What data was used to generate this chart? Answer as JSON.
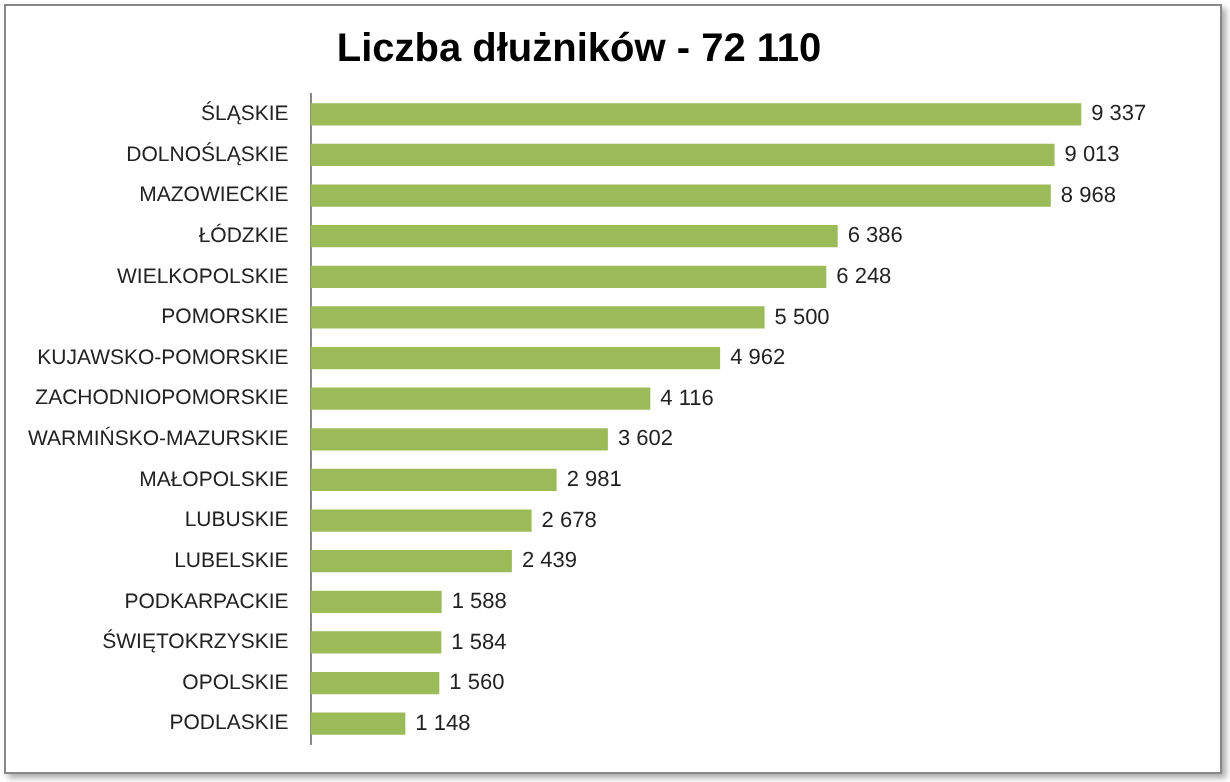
{
  "chart_data": {
    "type": "bar",
    "orientation": "horizontal",
    "title": "Liczba dłużników - 72 110",
    "categories": [
      "ŚLĄSKIE",
      "DOLNOŚLĄSKIE",
      "MAZOWIECKIE",
      "ŁÓDZKIE",
      "WIELKOPOLSKIE",
      "POMORSKIE",
      "KUJAWSKO-POMORSKIE",
      "ZACHODNIOPOMORSKIE",
      "WARMIŃSKO-MAZURSKIE",
      "MAŁOPOLSKIE",
      "LUBUSKIE",
      "LUBELSKIE",
      "PODKARPACKIE",
      "ŚWIĘTOKRZYSKIE",
      "OPOLSKIE",
      "PODLASKIE"
    ],
    "values": [
      9337,
      9013,
      8968,
      6386,
      6248,
      5500,
      4962,
      4116,
      3602,
      2981,
      2678,
      2439,
      1588,
      1584,
      1560,
      1148
    ],
    "value_labels": [
      "9 337",
      "9 013",
      "8 968",
      "6 386",
      "6 248",
      "5 500",
      "4 962",
      "4 116",
      "3 602",
      "2 981",
      "2 678",
      "2 439",
      "1 588",
      "1 584",
      "1 560",
      "1 148"
    ],
    "color": "#9bbb59",
    "grid": false,
    "legend": false,
    "tick_labels": "y"
  }
}
